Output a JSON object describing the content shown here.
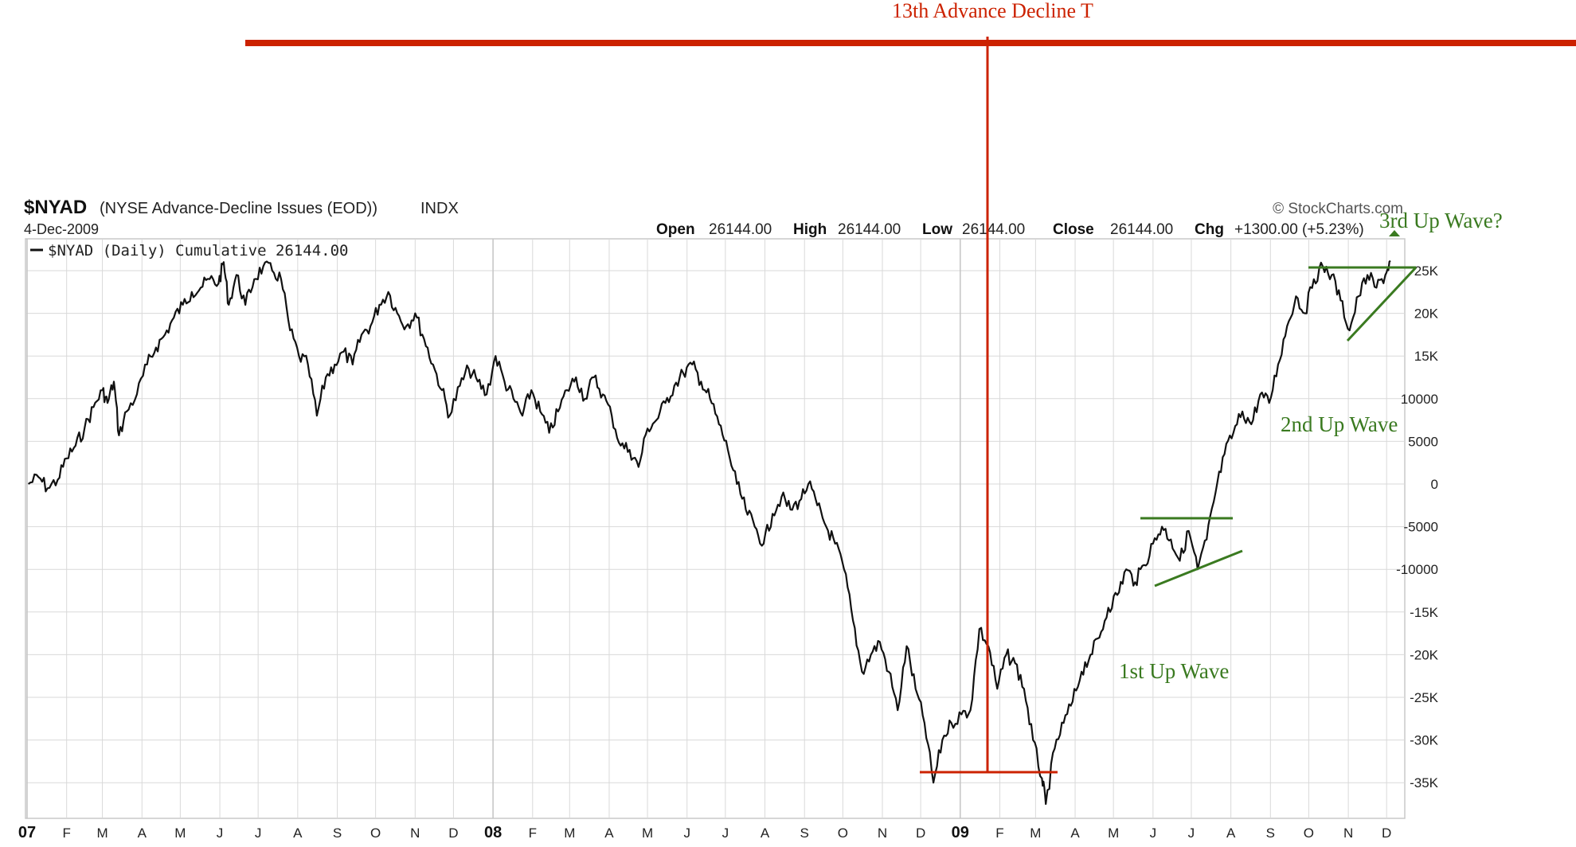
{
  "header": {
    "symbol": "$NYAD",
    "description": "(NYSE Advance-Decline Issues (EOD))",
    "exchange": "INDX",
    "date": "4-Dec-2009",
    "watermark": "© StockCharts.com",
    "ohlc": {
      "open_label": "Open",
      "open": "26144.00",
      "high_label": "High",
      "high": "26144.00",
      "low_label": "Low",
      "low": "26144.00",
      "close_label": "Close",
      "close": "26144.00",
      "chg_label": "Chg",
      "chg": "+1300.00 (+5.23%)"
    },
    "legend": "$NYAD (Daily) Cumulative 26144.00"
  },
  "annotations": {
    "top_label": "13th Advance Decline T",
    "wave1": "1st  Up Wave",
    "wave2": "2nd Up Wave",
    "wave3": "3rd Up Wave?"
  },
  "colors": {
    "line": "#111111",
    "red": "#cc2200",
    "green": "#3a7a20",
    "grid": "#d9d9d9"
  },
  "chart_data": {
    "type": "line",
    "title": "$NYAD (NYSE Advance-Decline Issues (EOD)) INDX",
    "xlabel": "",
    "ylabel": "",
    "ylim": [
      -38000,
      27000
    ],
    "y_ticks": [
      25000,
      20000,
      15000,
      10000,
      5000,
      0,
      -5000,
      -10000,
      -15000,
      -20000,
      -25000,
      -30000,
      -35000
    ],
    "y_tick_labels": [
      "25K",
      "20K",
      "15K",
      "10000",
      "5000",
      "0",
      "-5000",
      "-10000",
      "-15K",
      "-20K",
      "-25K",
      "-30K",
      "-35K"
    ],
    "x_axis": {
      "start": "2007-01-01",
      "end": "2009-12-04",
      "month_labels": [
        {
          "date": "2007-01-01",
          "label": "07",
          "year": true
        },
        {
          "date": "2007-02-01",
          "label": "F"
        },
        {
          "date": "2007-03-01",
          "label": "M"
        },
        {
          "date": "2007-04-01",
          "label": "A"
        },
        {
          "date": "2007-05-01",
          "label": "M"
        },
        {
          "date": "2007-06-01",
          "label": "J"
        },
        {
          "date": "2007-07-01",
          "label": "J"
        },
        {
          "date": "2007-08-01",
          "label": "A"
        },
        {
          "date": "2007-09-01",
          "label": "S"
        },
        {
          "date": "2007-10-01",
          "label": "O"
        },
        {
          "date": "2007-11-01",
          "label": "N"
        },
        {
          "date": "2007-12-01",
          "label": "D"
        },
        {
          "date": "2008-01-01",
          "label": "08",
          "year": true
        },
        {
          "date": "2008-02-01",
          "label": "F"
        },
        {
          "date": "2008-03-01",
          "label": "M"
        },
        {
          "date": "2008-04-01",
          "label": "A"
        },
        {
          "date": "2008-05-01",
          "label": "M"
        },
        {
          "date": "2008-06-01",
          "label": "J"
        },
        {
          "date": "2008-07-01",
          "label": "J"
        },
        {
          "date": "2008-08-01",
          "label": "A"
        },
        {
          "date": "2008-09-01",
          "label": "S"
        },
        {
          "date": "2008-10-01",
          "label": "O"
        },
        {
          "date": "2008-11-01",
          "label": "N"
        },
        {
          "date": "2008-12-01",
          "label": "D"
        },
        {
          "date": "2009-01-01",
          "label": "09",
          "year": true
        },
        {
          "date": "2009-02-01",
          "label": "F"
        },
        {
          "date": "2009-03-01",
          "label": "M"
        },
        {
          "date": "2009-04-01",
          "label": "A"
        },
        {
          "date": "2009-05-01",
          "label": "M"
        },
        {
          "date": "2009-06-01",
          "label": "J"
        },
        {
          "date": "2009-07-01",
          "label": "J"
        },
        {
          "date": "2009-08-01",
          "label": "A"
        },
        {
          "date": "2009-09-01",
          "label": "S"
        },
        {
          "date": "2009-10-01",
          "label": "O"
        },
        {
          "date": "2009-11-01",
          "label": "N"
        },
        {
          "date": "2009-12-01",
          "label": "D"
        }
      ]
    },
    "series": [
      {
        "name": "$NYAD (Daily) Cumulative",
        "points": [
          [
            "2007-01-02",
            0
          ],
          [
            "2007-01-10",
            800
          ],
          [
            "2007-01-17",
            -500
          ],
          [
            "2007-01-25",
            500
          ],
          [
            "2007-02-01",
            3000
          ],
          [
            "2007-02-08",
            4500
          ],
          [
            "2007-02-15",
            6500
          ],
          [
            "2007-02-22",
            9000
          ],
          [
            "2007-03-01",
            11000
          ],
          [
            "2007-03-05",
            9500
          ],
          [
            "2007-03-10",
            12000
          ],
          [
            "2007-03-14",
            5700
          ],
          [
            "2007-03-20",
            8500
          ],
          [
            "2007-03-28",
            10500
          ],
          [
            "2007-04-05",
            14000
          ],
          [
            "2007-04-12",
            16000
          ],
          [
            "2007-04-19",
            17500
          ],
          [
            "2007-04-26",
            19500
          ],
          [
            "2007-05-03",
            21000
          ],
          [
            "2007-05-10",
            22500
          ],
          [
            "2007-05-17",
            23000
          ],
          [
            "2007-05-24",
            24000
          ],
          [
            "2007-05-31",
            23500
          ],
          [
            "2007-06-04",
            26000
          ],
          [
            "2007-06-08",
            21000
          ],
          [
            "2007-06-14",
            24500
          ],
          [
            "2007-06-21",
            21000
          ],
          [
            "2007-06-28",
            24000
          ],
          [
            "2007-07-05",
            25500
          ],
          [
            "2007-07-12",
            25000
          ],
          [
            "2007-07-19",
            24000
          ],
          [
            "2007-07-26",
            18000
          ],
          [
            "2007-08-02",
            15000
          ],
          [
            "2007-08-09",
            14000
          ],
          [
            "2007-08-16",
            8000
          ],
          [
            "2007-08-23",
            12500
          ],
          [
            "2007-08-30",
            14000
          ],
          [
            "2007-09-06",
            15500
          ],
          [
            "2007-09-13",
            14000
          ],
          [
            "2007-09-20",
            17500
          ],
          [
            "2007-09-27",
            18500
          ],
          [
            "2007-10-04",
            21000
          ],
          [
            "2007-10-11",
            22500
          ],
          [
            "2007-10-18",
            20000
          ],
          [
            "2007-10-25",
            18500
          ],
          [
            "2007-11-01",
            20000
          ],
          [
            "2007-11-08",
            17000
          ],
          [
            "2007-11-15",
            14000
          ],
          [
            "2007-11-22",
            11000
          ],
          [
            "2007-11-28",
            8000
          ],
          [
            "2007-12-06",
            11500
          ],
          [
            "2007-12-13",
            13500
          ],
          [
            "2007-12-20",
            12000
          ],
          [
            "2007-12-27",
            10500
          ],
          [
            "2008-01-03",
            15000
          ],
          [
            "2008-01-10",
            12000
          ],
          [
            "2008-01-17",
            10000
          ],
          [
            "2008-01-24",
            8000
          ],
          [
            "2008-01-31",
            11000
          ],
          [
            "2008-02-07",
            8500
          ],
          [
            "2008-02-14",
            6000
          ],
          [
            "2008-02-21",
            8500
          ],
          [
            "2008-02-28",
            11000
          ],
          [
            "2008-03-06",
            12500
          ],
          [
            "2008-03-13",
            10000
          ],
          [
            "2008-03-20",
            12500
          ],
          [
            "2008-03-27",
            10500
          ],
          [
            "2008-04-03",
            8000
          ],
          [
            "2008-04-10",
            4500
          ],
          [
            "2008-04-17",
            4000
          ],
          [
            "2008-04-24",
            2000
          ],
          [
            "2008-05-01",
            6500
          ],
          [
            "2008-05-08",
            7500
          ],
          [
            "2008-05-15",
            9500
          ],
          [
            "2008-05-22",
            11500
          ],
          [
            "2008-05-29",
            13000
          ],
          [
            "2008-06-05",
            14000
          ],
          [
            "2008-06-12",
            12000
          ],
          [
            "2008-06-19",
            10000
          ],
          [
            "2008-06-26",
            7000
          ],
          [
            "2008-07-03",
            4000
          ],
          [
            "2008-07-10",
            0
          ],
          [
            "2008-07-17",
            -3000
          ],
          [
            "2008-07-24",
            -5000
          ],
          [
            "2008-07-31",
            -7000
          ],
          [
            "2008-08-07",
            -3500
          ],
          [
            "2008-08-14",
            -1500
          ],
          [
            "2008-08-21",
            -3000
          ],
          [
            "2008-08-28",
            -2000
          ],
          [
            "2008-09-04",
            0
          ],
          [
            "2008-09-11",
            -2500
          ],
          [
            "2008-09-18",
            -5000
          ],
          [
            "2008-09-25",
            -7000
          ],
          [
            "2008-10-02",
            -10000
          ],
          [
            "2008-10-09",
            -16000
          ],
          [
            "2008-10-16",
            -22000
          ],
          [
            "2008-10-23",
            -20000
          ],
          [
            "2008-10-30",
            -18500
          ],
          [
            "2008-11-06",
            -22000
          ],
          [
            "2008-11-13",
            -26500
          ],
          [
            "2008-11-20",
            -19000
          ],
          [
            "2008-11-27",
            -24000
          ],
          [
            "2008-12-04",
            -28000
          ],
          [
            "2008-12-11",
            -35000
          ],
          [
            "2008-12-18",
            -30000
          ],
          [
            "2008-12-25",
            -28000
          ],
          [
            "2009-01-02",
            -27000
          ],
          [
            "2009-01-09",
            -26500
          ],
          [
            "2009-01-16",
            -17000
          ],
          [
            "2009-01-23",
            -19000
          ],
          [
            "2009-01-30",
            -24000
          ],
          [
            "2009-02-06",
            -20000
          ],
          [
            "2009-02-13",
            -21000
          ],
          [
            "2009-02-20",
            -24000
          ],
          [
            "2009-02-27",
            -30000
          ],
          [
            "2009-03-06",
            -34500
          ],
          [
            "2009-03-09",
            -37500
          ],
          [
            "2009-03-16",
            -31000
          ],
          [
            "2009-03-23",
            -28000
          ],
          [
            "2009-03-30",
            -25500
          ],
          [
            "2009-04-06",
            -22000
          ],
          [
            "2009-04-13",
            -20000
          ],
          [
            "2009-04-20",
            -18000
          ],
          [
            "2009-04-27",
            -14500
          ],
          [
            "2009-05-04",
            -13000
          ],
          [
            "2009-05-11",
            -10000
          ],
          [
            "2009-05-18",
            -11500
          ],
          [
            "2009-05-25",
            -9500
          ],
          [
            "2009-06-01",
            -7000
          ],
          [
            "2009-06-08",
            -5000
          ],
          [
            "2009-06-15",
            -6500
          ],
          [
            "2009-06-22",
            -9000
          ],
          [
            "2009-06-29",
            -5500
          ],
          [
            "2009-07-06",
            -10000
          ],
          [
            "2009-07-13",
            -6500
          ],
          [
            "2009-07-20",
            -1000
          ],
          [
            "2009-07-27",
            3500
          ],
          [
            "2009-08-03",
            6000
          ],
          [
            "2009-08-10",
            8500
          ],
          [
            "2009-08-17",
            7000
          ],
          [
            "2009-08-24",
            10500
          ],
          [
            "2009-08-31",
            9500
          ],
          [
            "2009-09-07",
            14000
          ],
          [
            "2009-09-14",
            18500
          ],
          [
            "2009-09-21",
            22000
          ],
          [
            "2009-09-28",
            20000
          ],
          [
            "2009-10-05",
            24000
          ],
          [
            "2009-10-12",
            25500
          ],
          [
            "2009-10-19",
            24500
          ],
          [
            "2009-10-26",
            21500
          ],
          [
            "2009-11-02",
            18000
          ],
          [
            "2009-11-09",
            22000
          ],
          [
            "2009-11-16",
            24500
          ],
          [
            "2009-11-23",
            23000
          ],
          [
            "2009-11-30",
            24500
          ],
          [
            "2009-12-04",
            26144
          ]
        ]
      }
    ]
  }
}
